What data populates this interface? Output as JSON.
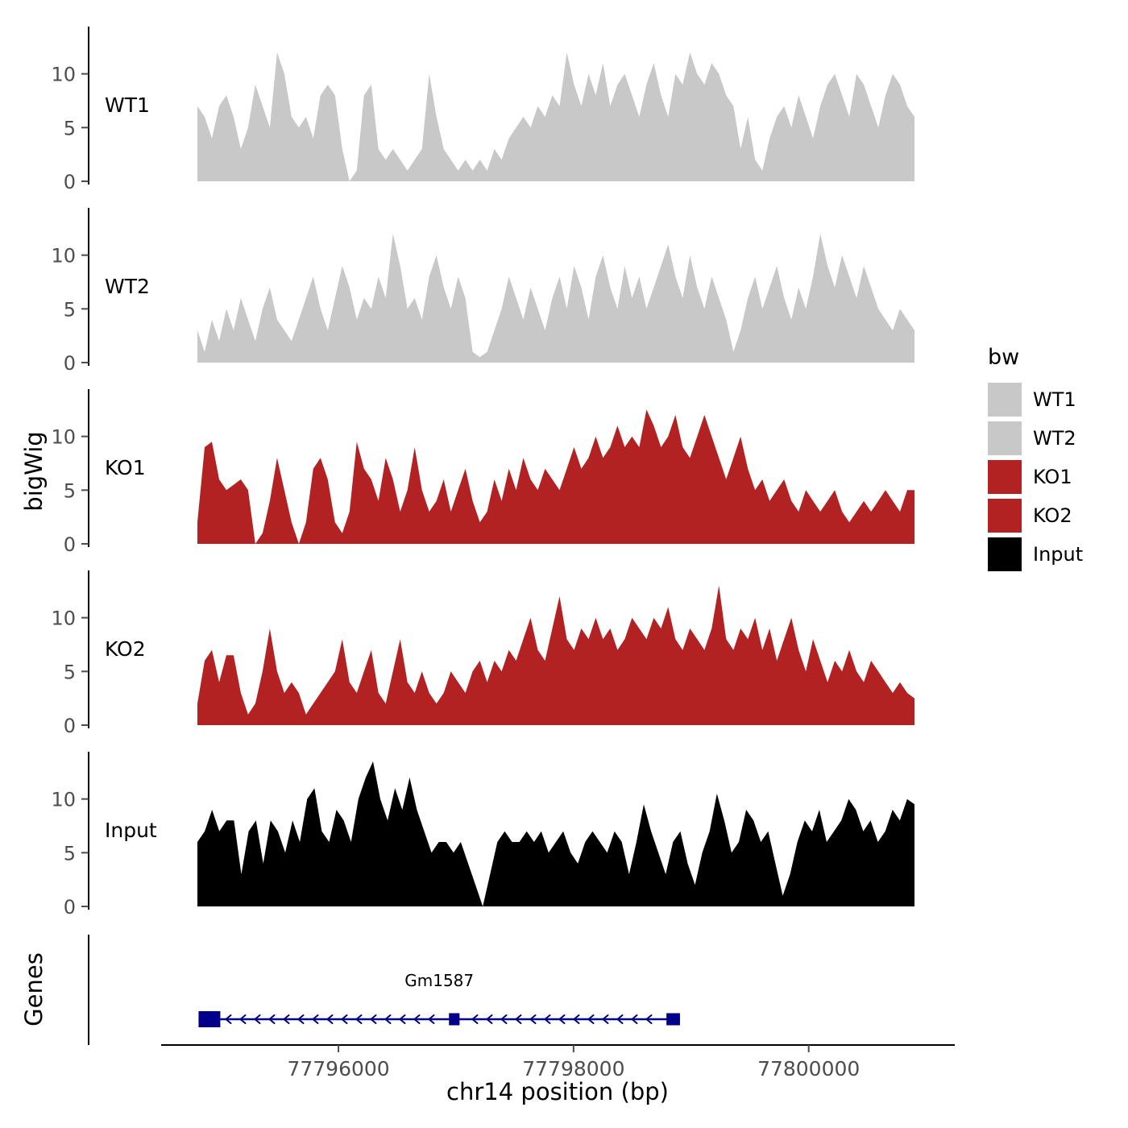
{
  "figure": {
    "xlabel": "chr14 position (bp)",
    "ylabel_tracks": "bigWig",
    "ylabel_genes": "Genes"
  },
  "colors": {
    "wt": "#c8c8c8",
    "ko": "#b22222",
    "input": "#000000",
    "gene": "#00008b",
    "axis": "#000000",
    "tick_text": "#4d4d4d"
  },
  "chart_data": {
    "type": "area",
    "title": "",
    "xlabel": "chr14 position (bp)",
    "ylabel": "bigWig",
    "x_start": 77794800,
    "x_end": 77800900,
    "x_ticks": [
      77796000,
      77798000,
      77800000
    ],
    "y_ticks": [
      0,
      5,
      10
    ],
    "ylim": [
      0,
      13.5
    ],
    "grid": false,
    "legend_position": "right",
    "series": [
      {
        "name": "WT1",
        "color": "#c8c8c8",
        "values": [
          7,
          6,
          4,
          7,
          8,
          6,
          3,
          5,
          9,
          7,
          5,
          12,
          10,
          6,
          5,
          6,
          4,
          8,
          9,
          8,
          3,
          0,
          1,
          8,
          9,
          3,
          2,
          3,
          2,
          1,
          2,
          3,
          10,
          6,
          3,
          2,
          1,
          2,
          1,
          2,
          1,
          3,
          2,
          4,
          5,
          6,
          5,
          7,
          6,
          8,
          7,
          12,
          9,
          7,
          10,
          8,
          11,
          7,
          9,
          10,
          8,
          6,
          9,
          11,
          8,
          6,
          10,
          9,
          12,
          10,
          9,
          11,
          10,
          8,
          7,
          3,
          6,
          2,
          1,
          4,
          6,
          7,
          5,
          8,
          6,
          4,
          7,
          9,
          10,
          8,
          6,
          10,
          9,
          7,
          5,
          8,
          10,
          9,
          7,
          6
        ]
      },
      {
        "name": "WT2",
        "color": "#c8c8c8",
        "values": [
          3,
          1,
          4,
          2,
          5,
          3,
          6,
          4,
          2,
          5,
          7,
          4,
          3,
          2,
          4,
          6,
          8,
          5,
          3,
          6,
          9,
          7,
          4,
          6,
          5,
          8,
          6,
          12,
          9,
          5,
          6,
          4,
          8,
          10,
          7,
          5,
          8,
          6,
          1,
          0.5,
          1,
          3,
          5,
          8,
          6,
          4,
          7,
          5,
          3,
          6,
          8,
          5,
          9,
          7,
          4,
          8,
          10,
          7,
          5,
          9,
          6,
          8,
          5,
          7,
          9,
          11,
          8,
          6,
          10,
          7,
          5,
          8,
          6,
          4,
          1,
          3,
          6,
          8,
          5,
          7,
          9,
          6,
          4,
          7,
          5,
          8,
          12,
          9,
          7,
          10,
          8,
          6,
          9,
          7,
          5,
          4,
          3,
          5,
          4,
          3
        ]
      },
      {
        "name": "KO1",
        "color": "#b22222",
        "values": [
          2,
          9,
          9.5,
          6,
          5,
          5.5,
          6,
          5,
          0,
          1,
          4,
          8,
          5,
          2,
          0,
          2,
          7,
          8,
          6,
          2,
          1,
          3,
          9.5,
          7,
          6,
          4,
          8,
          6,
          3,
          5,
          9,
          5,
          3,
          4,
          6,
          3,
          5,
          7,
          4,
          2,
          3,
          6,
          4,
          7,
          5,
          8,
          6,
          5,
          7,
          6,
          5,
          7,
          9,
          7,
          8,
          10,
          8,
          9,
          11,
          9,
          10,
          9,
          12.5,
          11,
          9,
          10,
          12,
          9,
          8,
          10,
          12,
          10,
          8,
          6,
          8,
          10,
          7,
          5,
          6,
          4,
          5,
          6,
          4,
          3,
          5,
          4,
          3,
          4,
          5,
          3,
          2,
          3,
          4,
          3,
          4,
          5,
          4,
          3,
          5,
          5
        ]
      },
      {
        "name": "KO2",
        "color": "#b22222",
        "values": [
          2,
          6,
          7,
          4,
          6.5,
          6.5,
          3,
          1,
          2,
          5,
          9,
          5,
          3,
          4,
          3,
          1,
          2,
          3,
          4,
          5,
          8,
          4,
          3,
          5,
          7,
          3,
          2,
          5,
          8,
          4,
          3,
          5,
          3,
          2,
          3,
          5,
          4,
          3,
          5,
          6,
          4,
          6,
          5,
          7,
          6,
          8,
          10,
          7,
          6,
          9,
          12,
          8,
          7,
          9,
          8,
          10,
          8,
          9,
          7,
          8,
          10,
          9,
          8,
          10,
          9,
          11,
          8,
          7,
          9,
          8,
          7,
          9,
          13,
          8,
          7,
          9,
          8,
          10,
          7,
          9,
          6,
          8,
          10,
          7,
          5,
          8,
          6,
          4,
          6,
          5,
          7,
          5,
          4,
          6,
          5,
          4,
          3,
          4,
          3,
          2.5
        ]
      },
      {
        "name": "Input",
        "color": "#000000",
        "values": [
          6,
          7,
          9,
          7,
          8,
          8,
          3,
          7,
          8,
          4,
          8,
          7,
          5,
          8,
          6,
          10,
          11,
          7,
          6,
          9,
          8,
          6,
          10,
          12,
          13.5,
          10,
          8,
          11,
          9,
          12,
          9,
          7,
          5,
          6,
          6,
          5,
          6,
          4,
          2,
          0,
          3,
          6,
          7,
          6,
          6,
          7,
          6,
          7,
          5,
          6,
          7,
          5,
          4,
          6,
          7,
          6,
          5,
          7,
          6,
          3,
          6,
          9.5,
          7,
          5,
          3,
          6,
          7,
          4,
          2,
          5,
          7,
          10.5,
          8,
          5,
          6,
          9,
          8,
          6,
          7,
          4,
          1,
          3,
          6,
          8,
          7,
          9,
          6,
          7,
          8,
          10,
          9,
          7,
          8,
          6,
          7,
          9,
          8,
          10,
          9.5
        ]
      }
    ],
    "genes": [
      {
        "name": "Gm1587",
        "start": 77794810,
        "end": 77798905,
        "strand": "-",
        "exons": [
          [
            77794810,
            77794995
          ],
          [
            77796940,
            77797030
          ],
          [
            77798790,
            77798905
          ]
        ]
      }
    ],
    "legend": {
      "title": "bw",
      "entries": [
        {
          "label": "WT1",
          "color": "#c8c8c8"
        },
        {
          "label": "WT2",
          "color": "#c8c8c8"
        },
        {
          "label": "KO1",
          "color": "#b22222"
        },
        {
          "label": "KO2",
          "color": "#b22222"
        },
        {
          "label": "Input",
          "color": "#000000"
        }
      ]
    }
  }
}
